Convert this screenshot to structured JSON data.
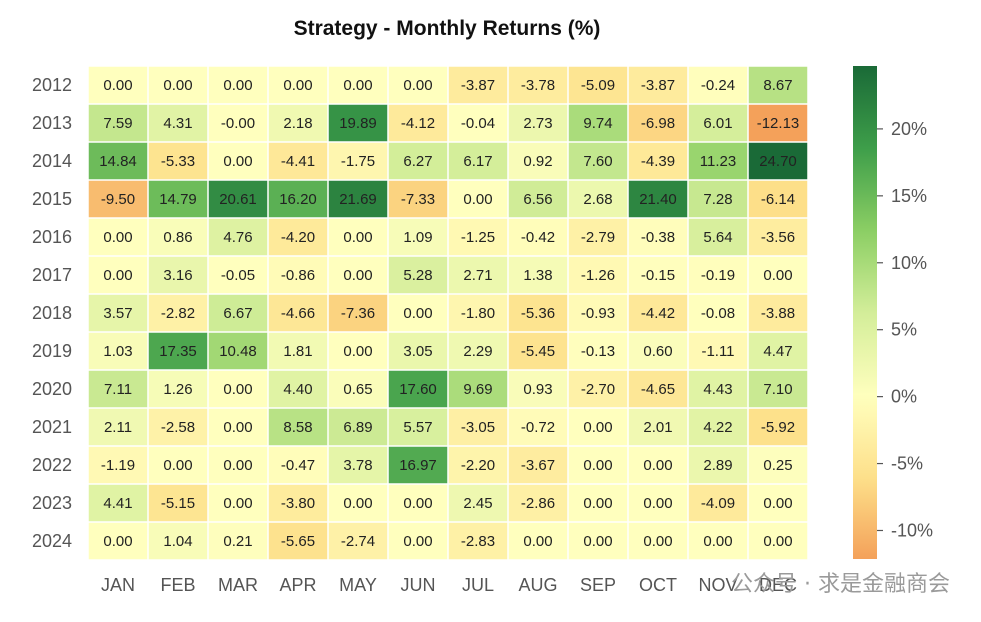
{
  "chart_data": {
    "type": "heatmap",
    "title": "Strategy - Monthly Returns (%)",
    "months": [
      "JAN",
      "FEB",
      "MAR",
      "APR",
      "MAY",
      "JUN",
      "JUL",
      "AUG",
      "SEP",
      "OCT",
      "NOV",
      "DEC"
    ],
    "years": [
      "2012",
      "2013",
      "2014",
      "2015",
      "2016",
      "2017",
      "2018",
      "2019",
      "2020",
      "2021",
      "2022",
      "2023",
      "2024"
    ],
    "values": [
      [
        0.0,
        0.0,
        0.0,
        0.0,
        0.0,
        0.0,
        -3.87,
        -3.78,
        -5.09,
        -3.87,
        -0.24,
        8.67
      ],
      [
        7.59,
        4.31,
        -0.0,
        2.18,
        19.89,
        -4.12,
        -0.04,
        2.73,
        9.74,
        -6.98,
        6.01,
        -12.13
      ],
      [
        14.84,
        -5.33,
        0.0,
        -4.41,
        -1.75,
        6.27,
        6.17,
        0.92,
        7.6,
        -4.39,
        11.23,
        24.7
      ],
      [
        -9.5,
        14.79,
        20.61,
        16.2,
        21.69,
        -7.33,
        0.0,
        6.56,
        2.68,
        21.4,
        7.28,
        -6.14
      ],
      [
        0.0,
        0.86,
        4.76,
        -4.2,
        0.0,
        1.09,
        -1.25,
        -0.42,
        -2.79,
        -0.38,
        5.64,
        -3.56
      ],
      [
        0.0,
        3.16,
        -0.05,
        -0.86,
        0.0,
        5.28,
        2.71,
        1.38,
        -1.26,
        -0.15,
        -0.19,
        0.0
      ],
      [
        3.57,
        -2.82,
        6.67,
        -4.66,
        -7.36,
        0.0,
        -1.8,
        -5.36,
        -0.93,
        -4.42,
        -0.08,
        -3.88
      ],
      [
        1.03,
        17.35,
        10.48,
        1.81,
        0.0,
        3.05,
        2.29,
        -5.45,
        -0.13,
        0.6,
        -1.11,
        4.47
      ],
      [
        7.11,
        1.26,
        0.0,
        4.4,
        0.65,
        17.6,
        9.69,
        0.93,
        -2.7,
        -4.65,
        4.43,
        7.1
      ],
      [
        2.11,
        -2.58,
        0.0,
        8.58,
        6.89,
        5.57,
        -3.05,
        -0.72,
        0.0,
        2.01,
        4.22,
        -5.92
      ],
      [
        -1.19,
        0.0,
        0.0,
        -0.47,
        3.78,
        16.97,
        -2.2,
        -3.67,
        0.0,
        0.0,
        2.89,
        0.25
      ],
      [
        4.41,
        -5.15,
        0.0,
        -3.8,
        0.0,
        0.0,
        2.45,
        -2.86,
        0.0,
        0.0,
        -4.09,
        0.0
      ],
      [
        0.0,
        1.04,
        0.21,
        -5.65,
        -2.74,
        0.0,
        -2.83,
        0.0,
        0.0,
        0.0,
        0.0,
        0.0
      ]
    ],
    "value_labels": [
      [
        "0.00",
        "0.00",
        "0.00",
        "0.00",
        "0.00",
        "0.00",
        "-3.87",
        "-3.78",
        "-5.09",
        "-3.87",
        "-0.24",
        "8.67"
      ],
      [
        "7.59",
        "4.31",
        "-0.00",
        "2.18",
        "19.89",
        "-4.12",
        "-0.04",
        "2.73",
        "9.74",
        "-6.98",
        "6.01",
        "-12.13"
      ],
      [
        "14.84",
        "-5.33",
        "0.00",
        "-4.41",
        "-1.75",
        "6.27",
        "6.17",
        "0.92",
        "7.60",
        "-4.39",
        "11.23",
        "24.70"
      ],
      [
        "-9.50",
        "14.79",
        "20.61",
        "16.20",
        "21.69",
        "-7.33",
        "0.00",
        "6.56",
        "2.68",
        "21.40",
        "7.28",
        "-6.14"
      ],
      [
        "0.00",
        "0.86",
        "4.76",
        "-4.20",
        "0.00",
        "1.09",
        "-1.25",
        "-0.42",
        "-2.79",
        "-0.38",
        "5.64",
        "-3.56"
      ],
      [
        "0.00",
        "3.16",
        "-0.05",
        "-0.86",
        "0.00",
        "5.28",
        "2.71",
        "1.38",
        "-1.26",
        "-0.15",
        "-0.19",
        "0.00"
      ],
      [
        "3.57",
        "-2.82",
        "6.67",
        "-4.66",
        "-7.36",
        "0.00",
        "-1.80",
        "-5.36",
        "-0.93",
        "-4.42",
        "-0.08",
        "-3.88"
      ],
      [
        "1.03",
        "17.35",
        "10.48",
        "1.81",
        "0.00",
        "3.05",
        "2.29",
        "-5.45",
        "-0.13",
        "0.60",
        "-1.11",
        "4.47"
      ],
      [
        "7.11",
        "1.26",
        "0.00",
        "4.40",
        "0.65",
        "17.60",
        "9.69",
        "0.93",
        "-2.70",
        "-4.65",
        "4.43",
        "7.10"
      ],
      [
        "2.11",
        "-2.58",
        "0.00",
        "8.58",
        "6.89",
        "5.57",
        "-3.05",
        "-0.72",
        "0.00",
        "2.01",
        "4.22",
        "-5.92"
      ],
      [
        "-1.19",
        "0.00",
        "0.00",
        "-0.47",
        "3.78",
        "16.97",
        "-2.20",
        "-3.67",
        "0.00",
        "0.00",
        "2.89",
        "0.25"
      ],
      [
        "4.41",
        "-5.15",
        "0.00",
        "-3.80",
        "0.00",
        "0.00",
        "2.45",
        "-2.86",
        "0.00",
        "0.00",
        "-4.09",
        "0.00"
      ],
      [
        "0.00",
        "1.04",
        "0.21",
        "-5.65",
        "-2.74",
        "0.00",
        "-2.83",
        "0.00",
        "0.00",
        "0.00",
        "0.00",
        "0.00"
      ]
    ],
    "colorbar": {
      "min": -12.13,
      "max": 24.7,
      "ticks": [
        20,
        15,
        10,
        5,
        0,
        -5,
        -10
      ],
      "tick_labels": [
        "20%",
        "15%",
        "10%",
        "5%",
        "0%",
        "-5%",
        "-10%"
      ],
      "colors": {
        "negative_end": "#f4a15a",
        "center": "#ffffbe",
        "positive_end": "#1a6a37"
      }
    }
  },
  "watermark": {
    "text": "公众号 · 求是金融商会"
  }
}
